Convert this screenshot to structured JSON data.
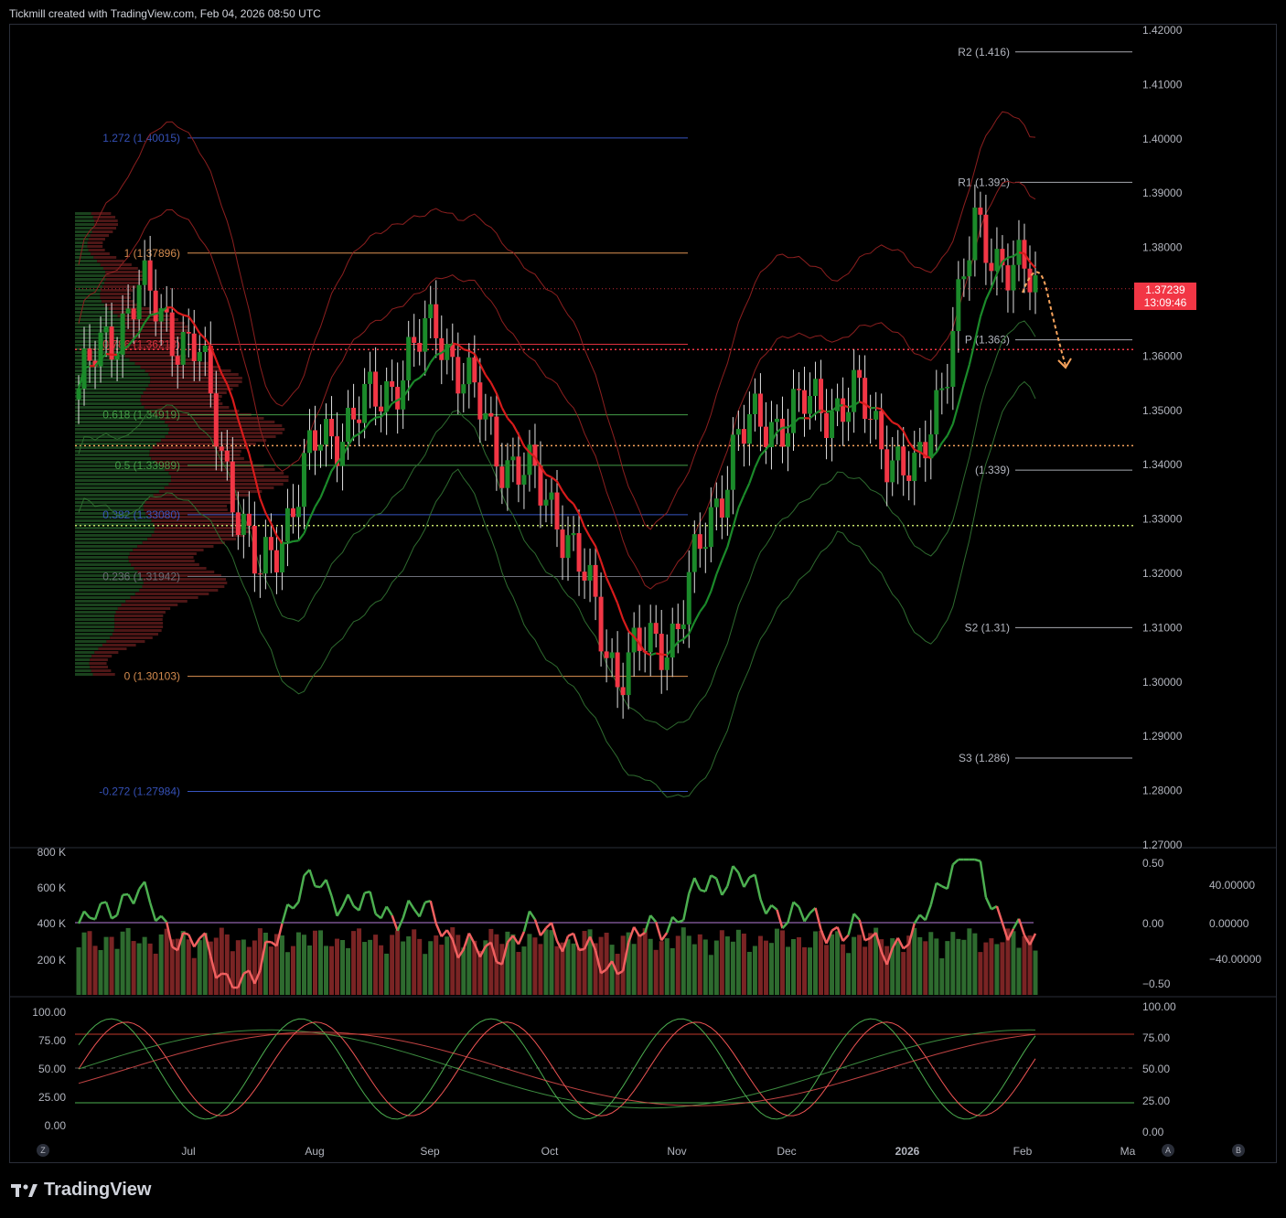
{
  "header": {
    "text": "Tickmill created with TradingView.com, Feb 04, 2026 08:50 UTC"
  },
  "brand": {
    "name": "TradingView"
  },
  "colors": {
    "up": "#1b8a2a",
    "down": "#f23645",
    "background": "#000000",
    "fib_orange": "#f7a35c",
    "fib_blue": "#3f5fd6",
    "pivot_line": "#d1d4dc"
  },
  "current_price": {
    "value": "1.37239",
    "countdown": "13:09:46"
  },
  "buttons": {
    "left": "Z",
    "right_a": "A",
    "right_b": "B"
  },
  "chart_data": [
    {
      "type": "candlestick",
      "panel": "price",
      "y_axis_ticks": [
        "1.42000",
        "1.41000",
        "1.40000",
        "1.39000",
        "1.38000",
        "1.37000",
        "1.36000",
        "1.35000",
        "1.34000",
        "1.33000",
        "1.32000",
        "1.31000",
        "1.30000",
        "1.29000",
        "1.28000",
        "1.27000"
      ],
      "x_axis_ticks": [
        "Jul",
        "Aug",
        "Sep",
        "Oct",
        "Nov",
        "Dec",
        "2026",
        "Feb",
        "Ma"
      ],
      "ylim": [
        1.27,
        1.42
      ],
      "approx_close_path": [
        {
          "x": "Jun",
          "y": 1.354
        },
        {
          "x": "Jul",
          "y": 1.372
        },
        {
          "x": "Jul",
          "y": 1.36
        },
        {
          "x": "Aug",
          "y": 1.318
        },
        {
          "x": "Aug",
          "y": 1.344
        },
        {
          "x": "Sep",
          "y": 1.352
        },
        {
          "x": "Sep",
          "y": 1.366
        },
        {
          "x": "Oct",
          "y": 1.343
        },
        {
          "x": "Oct",
          "y": 1.332
        },
        {
          "x": "Nov",
          "y": 1.302
        },
        {
          "x": "Nov",
          "y": 1.31
        },
        {
          "x": "Dec",
          "y": 1.345
        },
        {
          "x": "Dec",
          "y": 1.35
        },
        {
          "x": "2026",
          "y": 1.352
        },
        {
          "x": "2026",
          "y": 1.336
        },
        {
          "x": "Feb",
          "y": 1.383
        },
        {
          "x": "Feb",
          "y": 1.372
        }
      ],
      "fib_levels": [
        {
          "label": "1.272 (1.40015)",
          "value": 1.40015,
          "color": "#3f5fd6"
        },
        {
          "label": "1 (1.37896)",
          "value": 1.37896,
          "color": "#f7a35c"
        },
        {
          "label": "0.786 (1.36218)",
          "value": 1.36218,
          "color": "#f23645"
        },
        {
          "label": "0.618 (1.34919)",
          "value": 1.34919,
          "color": "#4caf50"
        },
        {
          "label": "0.5 (1.33989)",
          "value": 1.33989,
          "color": "#4caf50"
        },
        {
          "label": "0.382 (1.33080)",
          "value": 1.3308,
          "color": "#3f5fd6"
        },
        {
          "label": "0.236 (1.31942)",
          "value": 1.31942,
          "color": "#787b86"
        },
        {
          "label": "0 (1.30103)",
          "value": 1.30103,
          "color": "#f7a35c"
        },
        {
          "label": "-0.272 (1.27984)",
          "value": 1.27984,
          "color": "#3f5fd6"
        }
      ],
      "pivots": [
        {
          "label": "R2 (1.416)",
          "value": 1.416
        },
        {
          "label": "R1 (1.392)",
          "value": 1.392
        },
        {
          "label": "P (1.363)",
          "value": 1.363
        },
        {
          "label": "(1.339)",
          "value": 1.339
        },
        {
          "label": "S2 (1.31)",
          "value": 1.31
        },
        {
          "label": "S3 (1.286)",
          "value": 1.286
        }
      ],
      "dotted_levels": [
        {
          "value": 1.3612,
          "color": "#f23645"
        },
        {
          "value": 1.3435,
          "color": "#f7a35c"
        },
        {
          "value": 1.3288,
          "color": "#c6e26b"
        }
      ]
    },
    {
      "type": "bar+line",
      "panel": "volume_rsi",
      "volume_axis_ticks": [
        "800 K",
        "600 K",
        "400 K",
        "200 K"
      ],
      "right_axis_ticks_a": [
        "0.50",
        "0.00",
        "−0.50"
      ],
      "right_axis_ticks_b": [
        "40.00000",
        "0.00000",
        "−40.00000"
      ]
    },
    {
      "type": "line",
      "panel": "stochastic",
      "left_axis_ticks": [
        "100.00",
        "75.00",
        "50.00",
        "25.00",
        "0.00"
      ],
      "right_axis_ticks": [
        "100.00",
        "75.00",
        "50.00",
        "25.00",
        "0.00"
      ]
    }
  ]
}
